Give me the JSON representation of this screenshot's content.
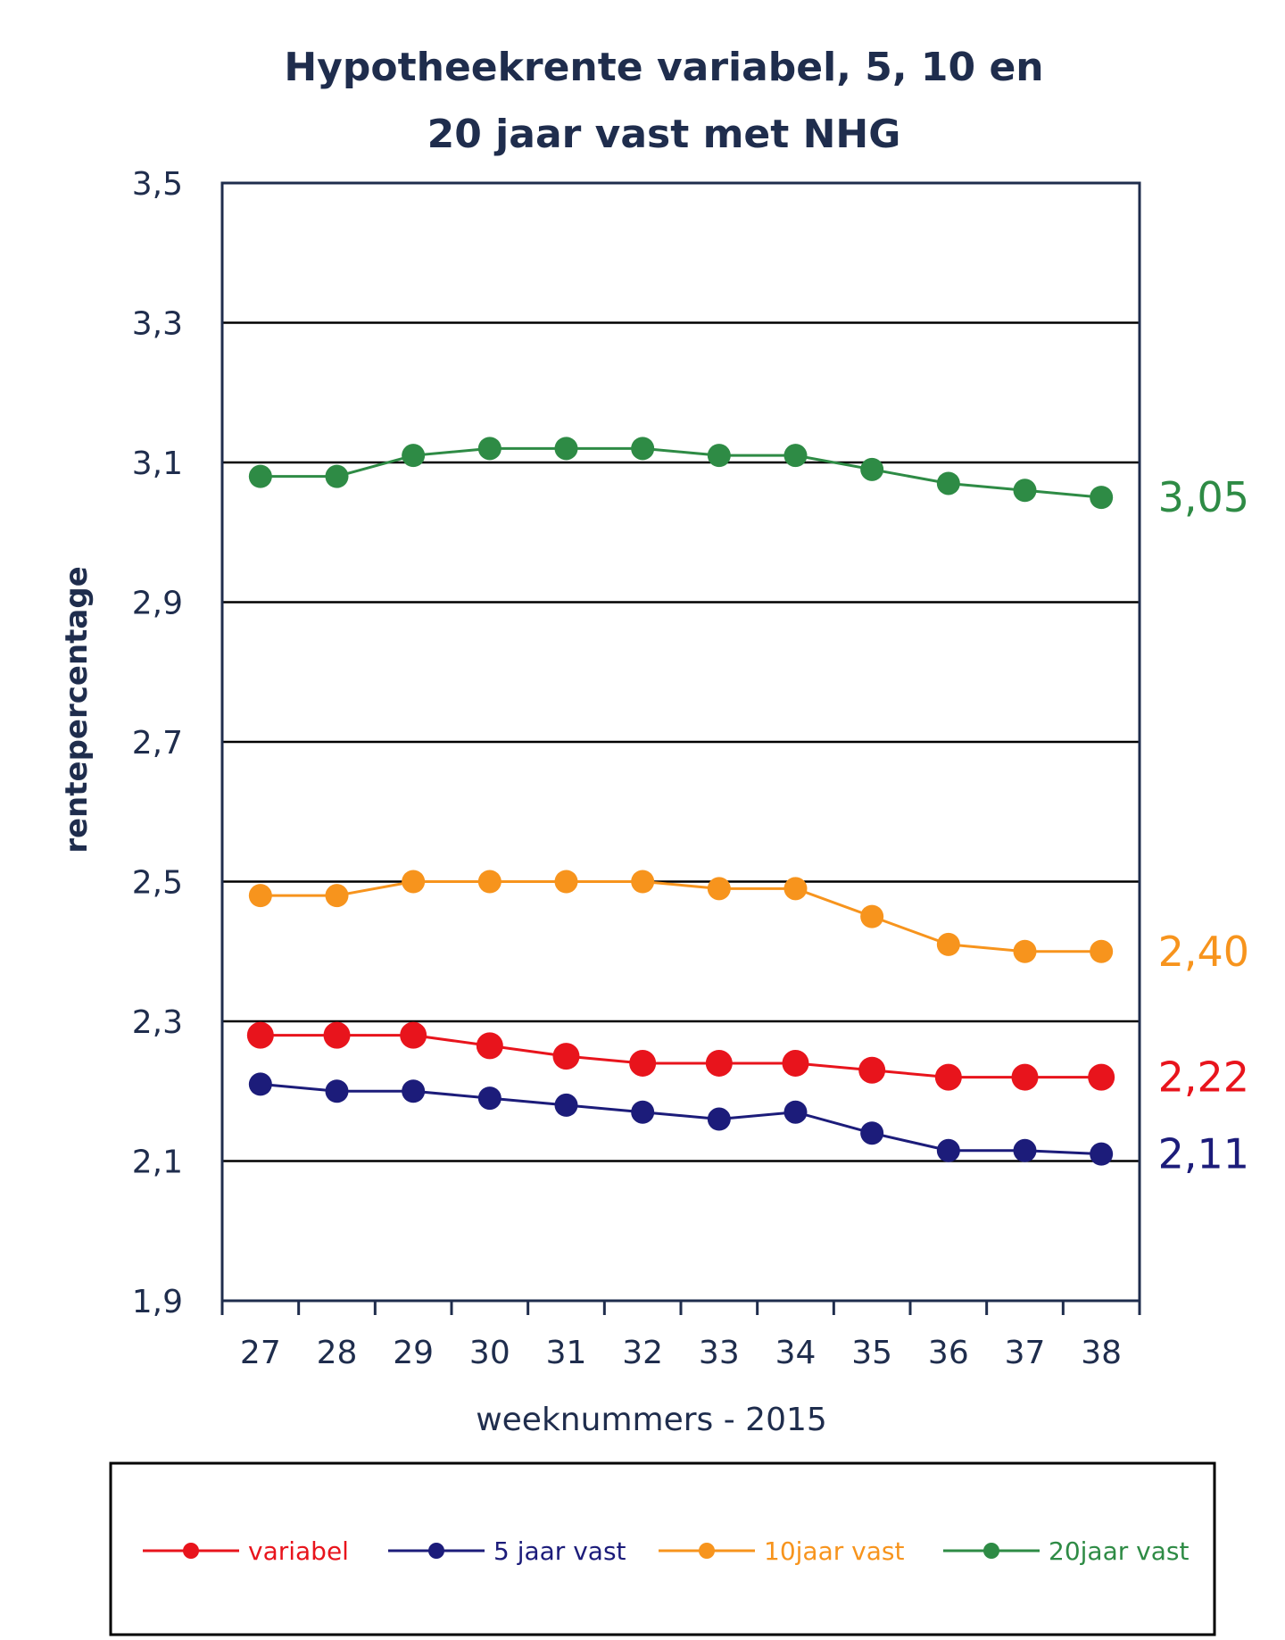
{
  "chart_data": {
    "type": "line",
    "title_lines": [
      "Hypotheekrente variabel, 5, 10 en",
      "20 jaar vast met NHG"
    ],
    "xlabel": "weeknummers - 2015",
    "ylabel": "rentepercentage",
    "categories": [
      "27",
      "28",
      "29",
      "30",
      "31",
      "32",
      "33",
      "34",
      "35",
      "36",
      "37",
      "38"
    ],
    "ylim": [
      1.9,
      3.5
    ],
    "yticks": [
      1.9,
      2.1,
      2.3,
      2.5,
      2.7,
      2.9,
      3.1,
      3.3,
      3.5
    ],
    "ytick_labels": [
      "1,9",
      "2,1",
      "2,3",
      "2,5",
      "2,7",
      "2,9",
      "3,1",
      "3,3",
      "3,5"
    ],
    "grid": true,
    "legend_position": "bottom",
    "series": [
      {
        "name": "variabel",
        "color": "#e8141c",
        "marker_size": "large",
        "values": [
          2.28,
          2.28,
          2.28,
          2.265,
          2.25,
          2.24,
          2.24,
          2.24,
          2.23,
          2.22,
          2.22,
          2.22
        ],
        "end_label": "2,22"
      },
      {
        "name": "5 jaar vast",
        "color": "#1c1c7a",
        "marker_size": "medium",
        "values": [
          2.21,
          2.2,
          2.2,
          2.19,
          2.18,
          2.17,
          2.16,
          2.17,
          2.14,
          2.115,
          2.115,
          2.11
        ],
        "end_label": "2,11"
      },
      {
        "name": "10jaar vast",
        "color": "#f7941d",
        "marker_size": "medium",
        "values": [
          2.48,
          2.48,
          2.5,
          2.5,
          2.5,
          2.5,
          2.49,
          2.49,
          2.45,
          2.41,
          2.4,
          2.4
        ],
        "end_label": "2,40"
      },
      {
        "name": "20jaar vast",
        "color": "#2e8b45",
        "marker_size": "medium",
        "values": [
          3.08,
          3.08,
          3.11,
          3.12,
          3.12,
          3.12,
          3.11,
          3.11,
          3.09,
          3.07,
          3.06,
          3.05
        ],
        "end_label": "3,05"
      }
    ]
  }
}
